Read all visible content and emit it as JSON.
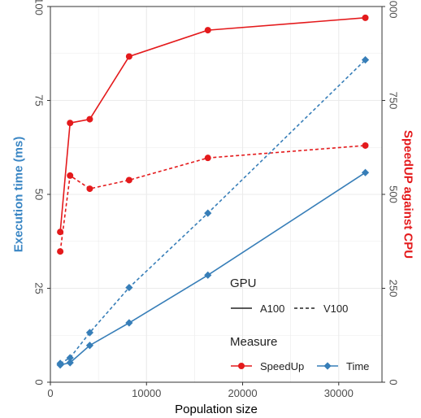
{
  "chart_data": {
    "type": "line",
    "x": [
      1024,
      2048,
      4096,
      8192,
      16384,
      32768
    ],
    "xlabel": "Population size",
    "xlim": [
      0,
      34500
    ],
    "xticks": [
      0,
      10000,
      20000,
      30000
    ],
    "xtick_labels": [
      "0",
      "10000",
      "20000",
      "30000"
    ],
    "ylabel_left": "Execution time (ms)",
    "ylim_left": [
      0,
      100
    ],
    "yticks_left": [
      0,
      25,
      50,
      75,
      100
    ],
    "ytick_labels_left": [
      "0",
      "25",
      "50",
      "75",
      "100"
    ],
    "ylabel_right": "SpeedUP against CPU",
    "ylim_right": [
      0,
      1000
    ],
    "yticks_right": [
      0,
      250,
      500,
      750,
      1000
    ],
    "ytick_labels_right": [
      "0",
      "250",
      "500",
      "750",
      "1000"
    ],
    "grid": true,
    "series": [
      {
        "measure": "SpeedUp",
        "gpu": "A100",
        "axis": "right",
        "color": "#e41a1c",
        "marker": "circle",
        "linestyle": "solid",
        "values": [
          400,
          690,
          700,
          867,
          937,
          970
        ]
      },
      {
        "measure": "SpeedUp",
        "gpu": "V100",
        "axis": "right",
        "color": "#e41a1c",
        "marker": "circle",
        "linestyle": "dashed",
        "values": [
          348,
          550,
          515,
          538,
          597,
          630
        ]
      },
      {
        "measure": "Time",
        "gpu": "A100",
        "axis": "left",
        "color": "#377eb8",
        "marker": "diamond",
        "linestyle": "solid",
        "values": [
          4.6,
          5.2,
          9.8,
          15.8,
          28.5,
          55.8
        ]
      },
      {
        "measure": "Time",
        "gpu": "V100",
        "axis": "left",
        "color": "#377eb8",
        "marker": "diamond",
        "linestyle": "dashed",
        "values": [
          5.0,
          6.5,
          13.2,
          25.2,
          45.0,
          85.8
        ]
      }
    ],
    "legend": {
      "placement": "bottom-right",
      "gpu_title": "GPU",
      "gpu_items": [
        {
          "label": "A100",
          "linestyle": "solid"
        },
        {
          "label": "V100",
          "linestyle": "dashed"
        }
      ],
      "measure_title": "Measure",
      "measure_items": [
        {
          "label": "SpeedUp",
          "color": "#e41a1c",
          "marker": "circle"
        },
        {
          "label": "Time",
          "color": "#377eb8",
          "marker": "diamond"
        }
      ]
    }
  }
}
